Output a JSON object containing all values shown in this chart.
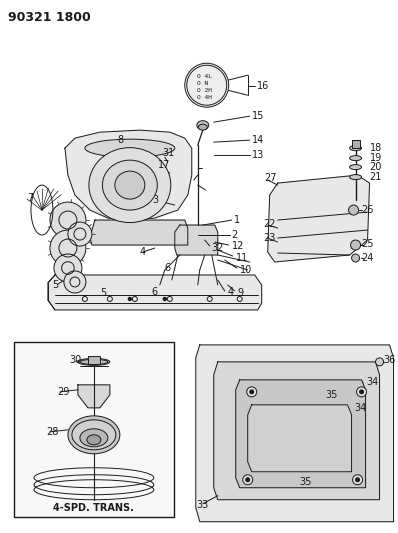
{
  "title": "90321 1800",
  "bg": "#ffffff",
  "fg": "#1a1a1a",
  "lw": 0.7,
  "shift_pattern": [
    "O 4L",
    "O N",
    "O 2H",
    "O 4H"
  ],
  "inset_label": "4-SPD. TRANS.",
  "fig_w": 3.98,
  "fig_h": 5.33,
  "dpi": 100
}
